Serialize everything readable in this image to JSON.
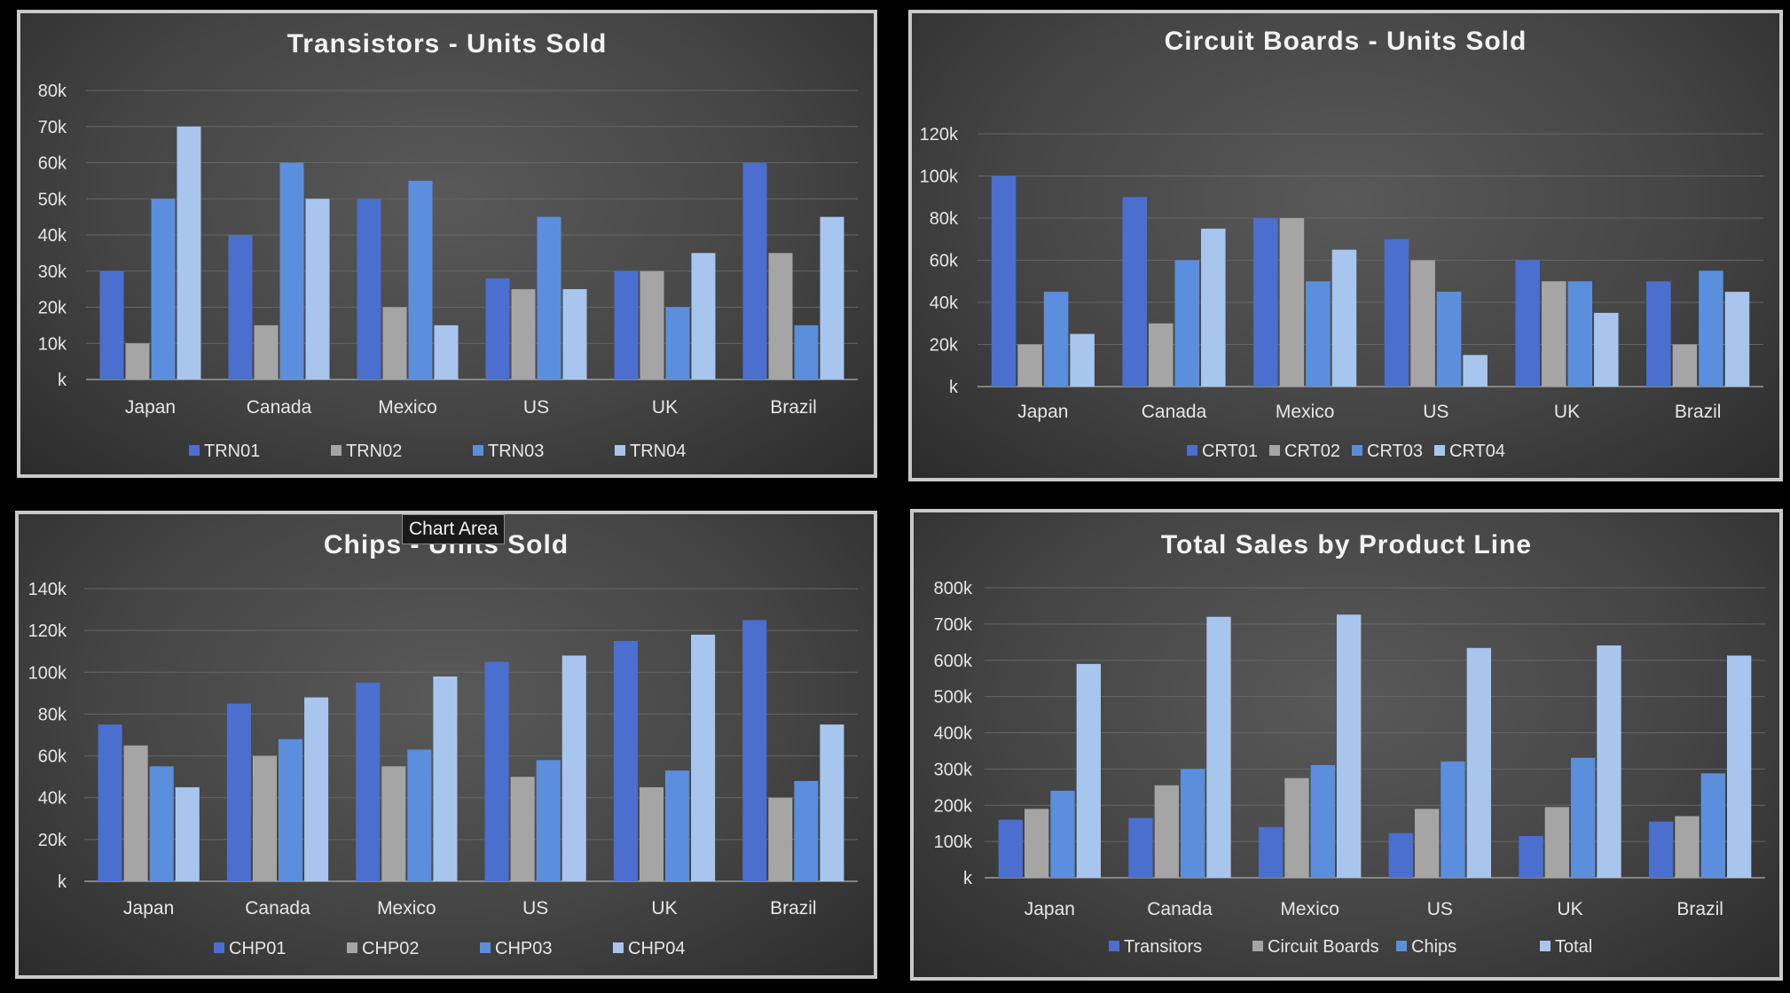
{
  "tooltip": "Chart Area",
  "chart_data": [
    {
      "type": "bar",
      "title": "Transistors - Units Sold",
      "categories": [
        "Japan",
        "Canada",
        "Mexico",
        "US",
        "UK",
        "Brazil"
      ],
      "ylim": [
        0,
        80000
      ],
      "ytick_labels": [
        "k",
        "10k",
        "20k",
        "30k",
        "40k",
        "50k",
        "60k",
        "70k",
        "80k"
      ],
      "grid": true,
      "legend": "bottom",
      "series": [
        {
          "name": "TRN01",
          "color": "#4a6fcf",
          "values": [
            30000,
            40000,
            50000,
            28000,
            30000,
            60000
          ]
        },
        {
          "name": "TRN02",
          "color": "#a5a5a5",
          "values": [
            10000,
            15000,
            20000,
            25000,
            30000,
            35000
          ]
        },
        {
          "name": "TRN03",
          "color": "#5b8fdd",
          "values": [
            50000,
            60000,
            55000,
            45000,
            20000,
            15000
          ]
        },
        {
          "name": "TRN04",
          "color": "#a8c6ed",
          "values": [
            70000,
            50000,
            15000,
            25000,
            35000,
            45000
          ]
        }
      ]
    },
    {
      "type": "bar",
      "title": "Circuit Boards - Units Sold",
      "categories": [
        "Japan",
        "Canada",
        "Mexico",
        "US",
        "UK",
        "Brazil"
      ],
      "ylim": [
        0,
        120000
      ],
      "ytick_labels": [
        "k",
        "20k",
        "40k",
        "60k",
        "80k",
        "100k",
        "120k"
      ],
      "grid": true,
      "legend": "bottom",
      "series": [
        {
          "name": "CRT01",
          "color": "#4a6fcf",
          "values": [
            100000,
            90000,
            80000,
            70000,
            60000,
            50000
          ]
        },
        {
          "name": "CRT02",
          "color": "#a5a5a5",
          "values": [
            20000,
            30000,
            80000,
            60000,
            50000,
            20000
          ]
        },
        {
          "name": "CRT03",
          "color": "#5b8fdd",
          "values": [
            45000,
            60000,
            50000,
            45000,
            50000,
            55000
          ]
        },
        {
          "name": "CRT04",
          "color": "#a8c6ed",
          "values": [
            25000,
            75000,
            65000,
            15000,
            35000,
            45000
          ]
        }
      ]
    },
    {
      "type": "bar",
      "title": "Chips - Units Sold",
      "categories": [
        "Japan",
        "Canada",
        "Mexico",
        "US",
        "UK",
        "Brazil"
      ],
      "ylim": [
        0,
        140000
      ],
      "ytick_labels": [
        "k",
        "20k",
        "40k",
        "60k",
        "80k",
        "100k",
        "120k",
        "140k"
      ],
      "grid": true,
      "legend": "bottom",
      "series": [
        {
          "name": "CHP01",
          "color": "#4a6fcf",
          "values": [
            75000,
            85000,
            95000,
            105000,
            115000,
            125000
          ]
        },
        {
          "name": "CHP02",
          "color": "#a5a5a5",
          "values": [
            65000,
            60000,
            55000,
            50000,
            45000,
            40000
          ]
        },
        {
          "name": "CHP03",
          "color": "#5b8fdd",
          "values": [
            55000,
            68000,
            63000,
            58000,
            53000,
            48000
          ]
        },
        {
          "name": "CHP04",
          "color": "#a8c6ed",
          "values": [
            45000,
            88000,
            98000,
            108000,
            118000,
            75000
          ]
        }
      ]
    },
    {
      "type": "bar",
      "title": "Total Sales by Product Line",
      "categories": [
        "Japan",
        "Canada",
        "Mexico",
        "US",
        "UK",
        "Brazil"
      ],
      "ylim": [
        0,
        800000
      ],
      "ytick_labels": [
        "k",
        "100k",
        "200k",
        "300k",
        "400k",
        "500k",
        "600k",
        "700k",
        "800k"
      ],
      "grid": true,
      "legend": "bottom",
      "series": [
        {
          "name": "Transitors",
          "color": "#4a6fcf",
          "values": [
            160000,
            165000,
            140000,
            123000,
            115000,
            155000
          ]
        },
        {
          "name": "Circuit Boards",
          "color": "#a5a5a5",
          "values": [
            190000,
            255000,
            275000,
            190000,
            195000,
            170000
          ]
        },
        {
          "name": "Chips",
          "color": "#5b8fdd",
          "values": [
            240000,
            300000,
            311000,
            321000,
            331000,
            288000
          ]
        },
        {
          "name": "Total",
          "color": "#a8c6ed",
          "values": [
            590000,
            720000,
            726000,
            634000,
            641000,
            613000
          ]
        }
      ]
    }
  ]
}
